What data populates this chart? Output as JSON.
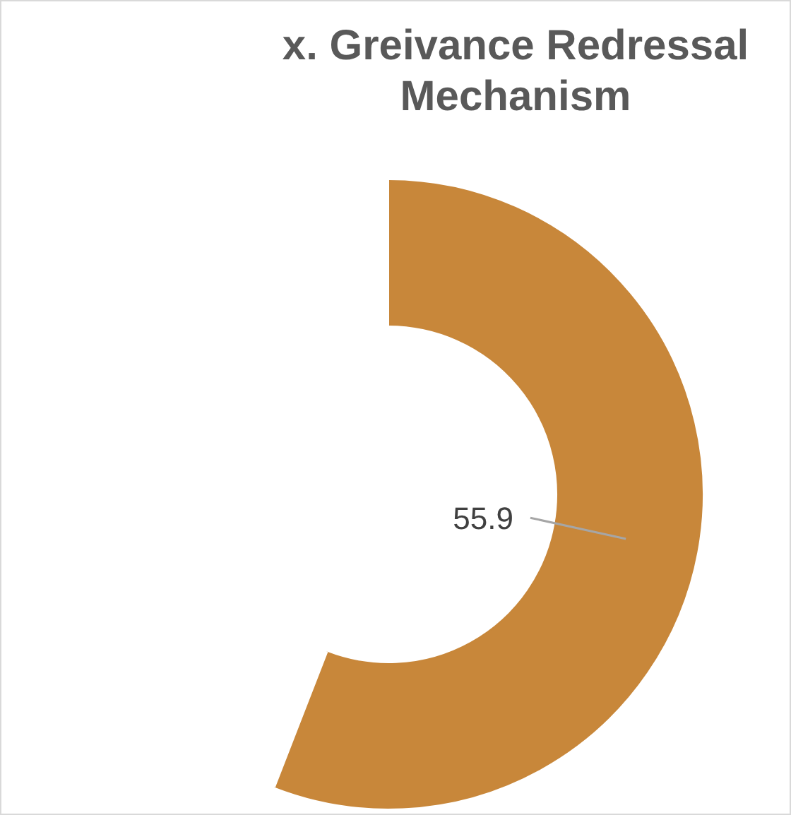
{
  "chart_data": {
    "type": "donut",
    "title": "x. Greivance Redressal Mechanism",
    "categories": [
      null,
      null
    ],
    "values": [
      55.9,
      44.1
    ],
    "colors": [
      "#c8873a",
      "#ffffff"
    ],
    "value_labels": [
      "55.9",
      null
    ],
    "legend": false
  }
}
